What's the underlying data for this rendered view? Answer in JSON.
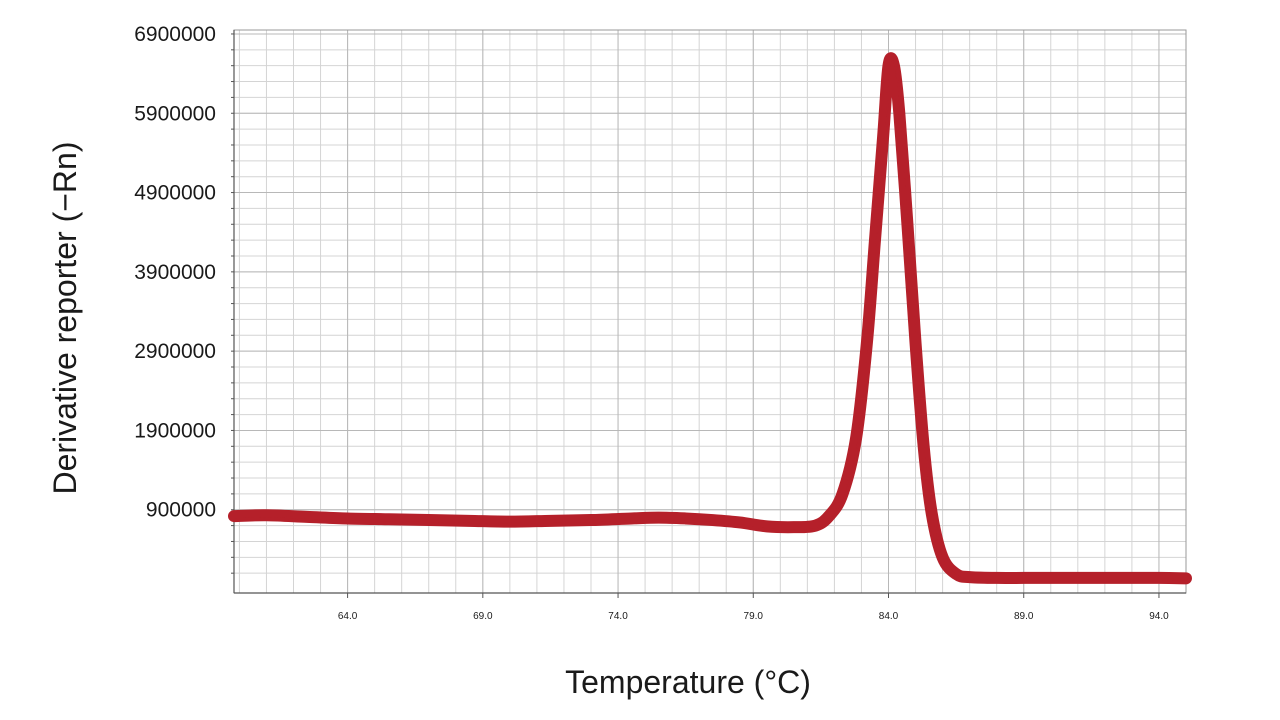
{
  "chart_data": {
    "type": "line",
    "title": "",
    "xlabel": "Temperature (°C)",
    "ylabel": "Derivative reporter (−Rn)",
    "xlim": [
      59.8,
      95.0
    ],
    "ylim": [
      -150000,
      6950000
    ],
    "grid": true,
    "legend": "none",
    "xticks": [
      64.0,
      69.0,
      74.0,
      79.0,
      84.0,
      89.0,
      94.0
    ],
    "xtick_labels": [
      "64.0",
      "69.0",
      "74.0",
      "79.0",
      "84.0",
      "89.0",
      "94.0"
    ],
    "yticks": [
      900000,
      1900000,
      2900000,
      3900000,
      4900000,
      5900000,
      6900000
    ],
    "ytick_labels": [
      "900000",
      "1900000",
      "2900000",
      "3900000",
      "4900000",
      "5900000",
      "6900000"
    ],
    "line_color": "#b5202a",
    "series": [
      {
        "x": [
          59.8,
          61.0,
          62.5,
          64.0,
          65.5,
          67.0,
          68.5,
          70.0,
          71.5,
          73.0,
          74.5,
          75.5,
          76.5,
          77.5,
          78.5,
          79.5,
          80.5,
          81.3,
          81.8,
          82.3,
          82.8,
          83.2,
          83.5,
          83.8,
          84.0,
          84.2,
          84.4,
          84.7,
          85.0,
          85.3,
          85.6,
          86.0,
          86.5,
          87.0,
          88.0,
          89.0,
          90.0,
          91.0,
          92.0,
          93.0,
          94.0,
          95.0
        ],
        "y": [
          820000,
          830000,
          810000,
          790000,
          780000,
          770000,
          760000,
          750000,
          760000,
          770000,
          790000,
          800000,
          790000,
          770000,
          740000,
          690000,
          680000,
          700000,
          820000,
          1100000,
          1800000,
          3000000,
          4300000,
          5600000,
          6500000,
          6500000,
          5900000,
          4500000,
          3000000,
          1700000,
          850000,
          300000,
          90000,
          50000,
          40000,
          40000,
          40000,
          40000,
          40000,
          40000,
          40000,
          35000
        ]
      }
    ]
  }
}
